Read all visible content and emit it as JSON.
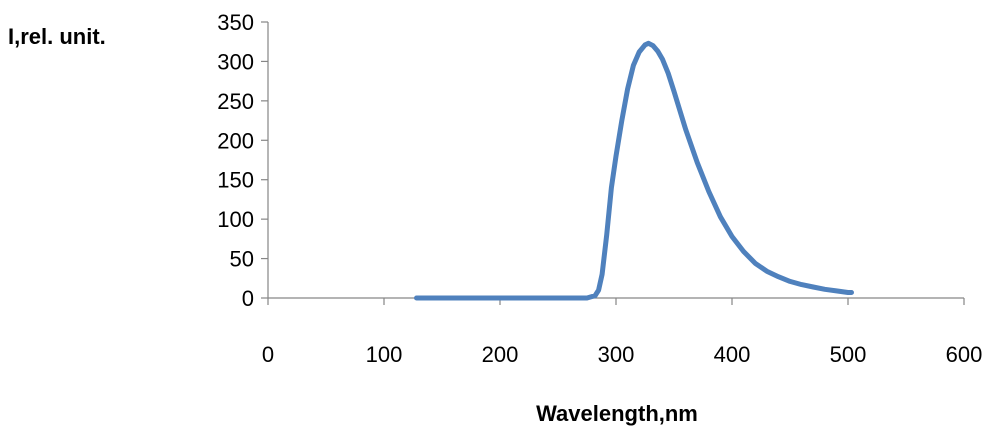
{
  "chart_data": {
    "type": "line",
    "xlabel": "Wavelength,nm",
    "ylabel": "I,rel. unit.",
    "xlim": [
      0,
      600
    ],
    "ylim": [
      0,
      350
    ],
    "xticks": [
      0,
      100,
      200,
      300,
      400,
      500,
      600
    ],
    "yticks": [
      0,
      50,
      100,
      150,
      200,
      250,
      300,
      350
    ],
    "grid": false,
    "legend": "none",
    "line_color": "#4f81bd",
    "series": [
      {
        "x": [
          128,
          150,
          200,
          250,
          275,
          282,
          285,
          288,
          292,
          296,
          300,
          305,
          310,
          315,
          320,
          325,
          328,
          332,
          336,
          340,
          345,
          350,
          355,
          360,
          370,
          380,
          390,
          400,
          410,
          420,
          430,
          440,
          450,
          460,
          470,
          480,
          490,
          500,
          503
        ],
        "y": [
          0,
          0,
          0,
          0,
          0,
          3,
          10,
          30,
          80,
          140,
          180,
          225,
          265,
          295,
          312,
          321,
          323,
          320,
          313,
          303,
          285,
          262,
          238,
          214,
          172,
          135,
          103,
          78,
          59,
          44,
          34,
          27,
          21,
          17,
          14,
          11,
          9,
          7,
          7
        ]
      }
    ]
  }
}
